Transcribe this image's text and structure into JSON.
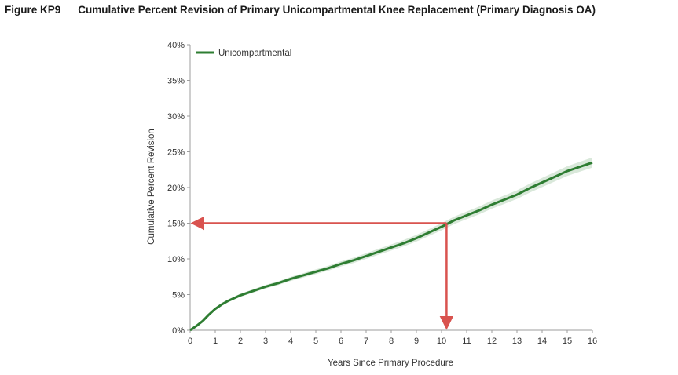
{
  "figure": {
    "number": "Figure KP9",
    "title": "Cumulative Percent Revision of Primary Unicompartmental Knee Replacement (Primary Diagnosis OA)"
  },
  "chart_data": {
    "type": "line",
    "xlabel": "Years Since Primary Procedure",
    "ylabel": "Cumulative Percent Revision",
    "xlim": [
      0,
      16
    ],
    "ylim": [
      0,
      40
    ],
    "x_ticks": [
      "0",
      "1",
      "2",
      "3",
      "4",
      "5",
      "6",
      "7",
      "8",
      "9",
      "10",
      "11",
      "12",
      "13",
      "14",
      "15",
      "16"
    ],
    "y_ticks": [
      "0%",
      "5%",
      "10%",
      "15%",
      "20%",
      "25%",
      "30%",
      "35%",
      "40%"
    ],
    "grid": false,
    "legend": "top-left",
    "series": [
      {
        "name": "Unicompartmental",
        "color": "#2e7d32",
        "x": [
          0,
          0.25,
          0.5,
          0.75,
          1,
          1.25,
          1.5,
          2,
          2.5,
          3,
          3.5,
          4,
          4.5,
          5,
          5.5,
          6,
          6.5,
          7,
          7.5,
          8,
          8.5,
          9,
          9.5,
          10,
          10.5,
          11,
          11.5,
          12,
          12.5,
          13,
          13.5,
          14,
          14.5,
          15,
          15.5,
          16
        ],
        "y": [
          0,
          0.6,
          1.3,
          2.2,
          3.0,
          3.6,
          4.1,
          4.9,
          5.5,
          6.1,
          6.6,
          7.2,
          7.7,
          8.2,
          8.7,
          9.3,
          9.8,
          10.4,
          11.0,
          11.6,
          12.2,
          12.9,
          13.7,
          14.5,
          15.4,
          16.1,
          16.8,
          17.6,
          18.3,
          19.0,
          19.9,
          20.7,
          21.5,
          22.3,
          22.9,
          23.5
        ]
      }
    ],
    "annotations": [
      {
        "type": "arrow",
        "color": "#d9534f",
        "from": [
          10.2,
          15
        ],
        "to": [
          0,
          15
        ]
      },
      {
        "type": "arrow",
        "color": "#d9534f",
        "from": [
          10.2,
          15
        ],
        "to": [
          10.2,
          0
        ]
      }
    ]
  }
}
